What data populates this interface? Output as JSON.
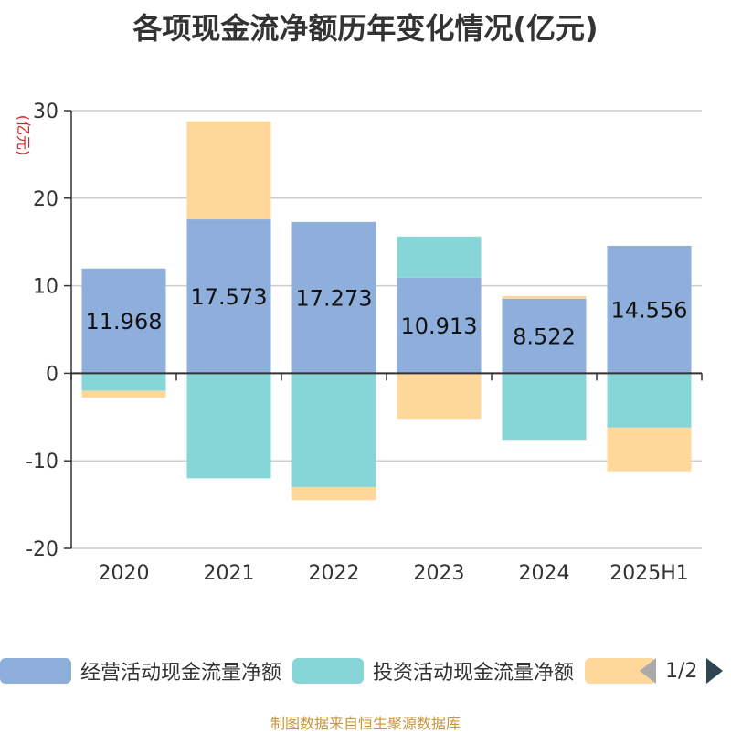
{
  "title": "各项现金流净额历年变化情况(亿元)",
  "y_unit": "(亿元)",
  "source": "制图数据来自恒生聚源数据库",
  "pager": "1/2",
  "colors": {
    "operating": "#8eaedb",
    "investing": "#86d6d8",
    "financing": "#fdd89a"
  },
  "chart_data": {
    "type": "bar",
    "stacked": true,
    "categories": [
      "2020",
      "2021",
      "2022",
      "2023",
      "2024",
      "2025H1"
    ],
    "ylim": [
      -20,
      30
    ],
    "yticks": [
      -20,
      -10,
      0,
      10,
      20,
      30
    ],
    "grid": true,
    "legend_position": "bottom",
    "series": [
      {
        "name": "经营活动现金流量净额",
        "values": [
          11.968,
          17.573,
          17.273,
          10.913,
          8.522,
          14.556
        ],
        "labels": [
          "11.968",
          "17.573",
          "17.273",
          "10.913",
          "8.522",
          "14.556"
        ]
      },
      {
        "name": "投资活动现金流量净额",
        "values": [
          -2.0,
          -12.0,
          -13.0,
          4.7,
          -7.6,
          -6.2
        ]
      },
      {
        "name": "",
        "values": [
          -0.8,
          11.2,
          -1.5,
          -5.2,
          0.3,
          -5.0
        ]
      }
    ]
  }
}
